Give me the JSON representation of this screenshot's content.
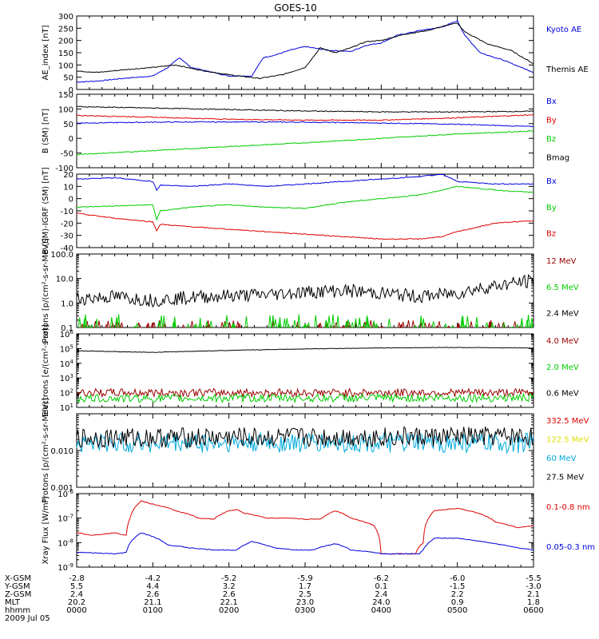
{
  "title": "GOES-10",
  "colors": {
    "black": "#000000",
    "blue": "#0000dd",
    "red": "#dd0000",
    "green": "#00cc00",
    "darkred": "#990000",
    "yellow": "#dddd00",
    "cyan": "#00aadd"
  },
  "x_ticks": {
    "rows": [
      {
        "label": "X-GSM",
        "values": [
          "-2.8",
          "-4.2",
          "-5.2",
          "-5.9",
          "-6.2",
          "-6.0",
          "-5.5"
        ]
      },
      {
        "label": "Y-GSM",
        "values": [
          "5.5",
          "4.4",
          "3.2",
          "1.7",
          "0.1",
          "-1.5",
          "-3.0"
        ]
      },
      {
        "label": "Z-GSM",
        "values": [
          "2.4",
          "2.6",
          "2.6",
          "2.5",
          "2.4",
          "2.2",
          "2.1"
        ]
      },
      {
        "label": "MLT",
        "values": [
          "20.2",
          "21.1",
          "22.1",
          "23.0",
          "24.0",
          "0.9",
          "1.8"
        ]
      },
      {
        "label": "hhmm",
        "values": [
          "0000",
          "0100",
          "0200",
          "0300",
          "0400",
          "0500",
          "0600"
        ]
      }
    ],
    "date": "2009 Jul 05"
  },
  "chart_data": [
    {
      "type": "line",
      "ylabel": "AE_index [nT]",
      "ylim": [
        0,
        300
      ],
      "yticks": [
        "0",
        "50",
        "100",
        "150",
        "200",
        "250",
        "300"
      ],
      "series": [
        {
          "name": "Kyoto AE",
          "color": "blue",
          "x": [
            0,
            0.3,
            0.6,
            1.0,
            1.2,
            1.35,
            1.5,
            2.0,
            2.3,
            2.45,
            2.6,
            2.8,
            3.0,
            3.3,
            3.6,
            3.8,
            4.0,
            4.2,
            4.5,
            4.8,
            5.0,
            5.1,
            5.3,
            5.6,
            6.0
          ],
          "y": [
            30,
            35,
            45,
            55,
            90,
            130,
            90,
            55,
            55,
            130,
            140,
            160,
            175,
            160,
            155,
            180,
            190,
            220,
            240,
            255,
            280,
            220,
            150,
            120,
            70
          ]
        },
        {
          "name": "Themis AE",
          "color": "black",
          "x": [
            0,
            0.3,
            0.6,
            1.0,
            1.3,
            1.6,
            2.0,
            2.4,
            2.7,
            3.0,
            3.2,
            3.4,
            3.6,
            3.8,
            4.0,
            4.3,
            4.6,
            4.9,
            5.0,
            5.1,
            5.4,
            5.7,
            6.0
          ],
          "y": [
            75,
            70,
            80,
            90,
            100,
            80,
            60,
            45,
            60,
            90,
            170,
            150,
            170,
            195,
            200,
            225,
            240,
            265,
            270,
            235,
            185,
            160,
            105
          ]
        }
      ]
    },
    {
      "type": "line",
      "ylabel": "B (SM) [nT]",
      "ylim": [
        -100,
        150
      ],
      "yticks": [
        "-100",
        "-50",
        "0",
        "50",
        "100",
        "150"
      ],
      "series": [
        {
          "name": "Bx",
          "color": "blue",
          "x": [
            0,
            1,
            2,
            3,
            4,
            5,
            6
          ],
          "y": [
            52,
            55,
            56,
            55,
            52,
            48,
            40
          ]
        },
        {
          "name": "By",
          "color": "red",
          "x": [
            0,
            1,
            2,
            3,
            4,
            5,
            6
          ],
          "y": [
            78,
            72,
            65,
            62,
            62,
            70,
            80
          ]
        },
        {
          "name": "Bz",
          "color": "green",
          "x": [
            0,
            1,
            2,
            3,
            4,
            5,
            6
          ],
          "y": [
            -55,
            -42,
            -28,
            -15,
            0,
            15,
            25
          ]
        },
        {
          "name": "Bmag",
          "color": "black",
          "x": [
            0,
            1,
            2,
            3,
            4,
            5,
            6
          ],
          "y": [
            108,
            103,
            98,
            93,
            90,
            90,
            92
          ]
        }
      ]
    },
    {
      "type": "line",
      "ylabel": "B (SM)-IGRF (SM) [nT]",
      "ylim": [
        -40,
        20
      ],
      "yticks": [
        "-40",
        "-30",
        "-20",
        "-10",
        "0",
        "10",
        "20"
      ],
      "series": [
        {
          "name": "Bx",
          "color": "blue",
          "x": [
            0,
            0.5,
            1.0,
            1.05,
            1.1,
            1.5,
            2.0,
            2.5,
            3.0,
            3.5,
            4.0,
            4.5,
            4.8,
            5.0,
            5.5,
            6.0
          ],
          "y": [
            16,
            17,
            14,
            7,
            11,
            10,
            12,
            10,
            12,
            14,
            16,
            18,
            20,
            14,
            12,
            12
          ]
        },
        {
          "name": "By",
          "color": "green",
          "x": [
            0,
            0.5,
            1.0,
            1.05,
            1.1,
            1.5,
            2.0,
            2.5,
            3.0,
            3.5,
            4.0,
            4.5,
            4.8,
            5.0,
            5.5,
            6.0
          ],
          "y": [
            -7,
            -6,
            -5,
            -17,
            -10,
            -7,
            -5,
            -7,
            -8,
            -3,
            0,
            3,
            7,
            10,
            7,
            5
          ]
        },
        {
          "name": "Bz",
          "color": "red",
          "x": [
            0,
            0.5,
            1.0,
            1.05,
            1.1,
            1.5,
            2.0,
            2.5,
            3.0,
            3.5,
            4.0,
            4.5,
            4.8,
            5.0,
            5.5,
            6.0
          ],
          "y": [
            -12,
            -16,
            -19,
            -26,
            -21,
            -23,
            -25,
            -27,
            -29,
            -31,
            -33,
            -33,
            -31,
            -27,
            -20,
            -18
          ]
        }
      ]
    },
    {
      "type": "line",
      "ylabel": "Protons [p/(cm²-s-sr-MeV)]",
      "yscale": "log",
      "ylim": [
        0.1,
        100
      ],
      "yticks": [
        "0.1",
        "1.0",
        "10.0",
        "100.0"
      ],
      "series": [
        {
          "name": "12 MeV",
          "color": "darkred",
          "sparse": true,
          "ylevel": [
            0.1,
            0.2
          ]
        },
        {
          "name": "6.5 MeV",
          "color": "green",
          "sparse": true,
          "ylevel": [
            0.1,
            0.35
          ]
        },
        {
          "name": "2.4 MeV",
          "color": "black",
          "x": [
            0,
            0.5,
            1.0,
            1.5,
            2.0,
            2.5,
            3.0,
            3.5,
            4.0,
            4.5,
            5.0,
            5.5,
            6.0
          ],
          "y": [
            1.5,
            1.8,
            1.3,
            1.7,
            2.0,
            2.2,
            2.8,
            3.2,
            2.5,
            1.8,
            2.5,
            5.0,
            8.0
          ],
          "noise": true
        }
      ]
    },
    {
      "type": "line",
      "ylabel": "Electrons [e/(cm²-s-sr)]",
      "yscale": "log",
      "ylim": [
        10,
        1000000
      ],
      "yticks": [
        "10^1",
        "10^2",
        "10^3",
        "10^4",
        "10^5",
        "10^6"
      ],
      "series": [
        {
          "name": "4.0 MeV",
          "color": "darkred",
          "x": [
            0,
            6
          ],
          "y": [
            100,
            100
          ],
          "noise": true
        },
        {
          "name": "2.0 MeV",
          "color": "green",
          "x": [
            0,
            6
          ],
          "y": [
            40,
            45
          ],
          "noise": true
        },
        {
          "name": "0.6 MeV",
          "color": "black",
          "x": [
            0,
            1,
            2,
            3,
            4,
            5,
            6
          ],
          "y": [
            70000,
            55000,
            75000,
            95000,
            110000,
            120000,
            110000
          ]
        }
      ]
    },
    {
      "type": "line",
      "ylabel": "Protons [p/(cm²-s-sr-MeV)]",
      "yscale": "log",
      "ylim": [
        0.001,
        0.1
      ],
      "yticks": [
        "0.001",
        "0.010"
      ],
      "series": [
        {
          "name": "332.5 MeV",
          "color": "red"
        },
        {
          "name": "122.5 MeV",
          "color": "yellow"
        },
        {
          "name": "60 MeV",
          "color": "cyan",
          "x": [
            0,
            6
          ],
          "y": [
            0.016,
            0.016
          ],
          "noise": true
        },
        {
          "name": "27.5 MeV",
          "color": "black",
          "x": [
            0,
            6
          ],
          "y": [
            0.022,
            0.024
          ],
          "noise": true
        }
      ]
    },
    {
      "type": "line",
      "ylabel": "Xray Flux [W/m²]",
      "yscale": "log",
      "ylim": [
        1e-09,
        1e-06
      ],
      "yticks": [
        "10^-9",
        "10^-8",
        "10^-7",
        "10^-6"
      ],
      "series": [
        {
          "name": "0.1-0.8 nm",
          "color": "red",
          "x": [
            0,
            0.2,
            0.5,
            0.65,
            0.7,
            0.85,
            0.95,
            1.3,
            1.6,
            1.8,
            2.0,
            2.1,
            2.2,
            2.5,
            2.8,
            3.0,
            3.2,
            3.4,
            3.6,
            3.9,
            4.0,
            4.2,
            4.3,
            4.45,
            4.55,
            4.7,
            5.0,
            5.3,
            5.5,
            5.8,
            6.0
          ],
          "y": [
            2.5e-08,
            2e-08,
            2.5e-08,
            2e-08,
            1e-07,
            5e-07,
            4e-07,
            2e-07,
            1e-07,
            9e-08,
            2e-07,
            2.2e-07,
            1.6e-07,
            1e-07,
            1e-07,
            9e-08,
            9e-08,
            2e-07,
            1e-07,
            5e-08,
            3.5e-09,
            3.5e-09,
            3.5e-09,
            3.5e-09,
            1e-08,
            2e-07,
            2.5e-07,
            1.5e-07,
            7e-08,
            4e-08,
            5e-08
          ]
        },
        {
          "name": "0.05-0.3 nm",
          "color": "blue",
          "x": [
            0,
            0.5,
            0.65,
            0.85,
            0.95,
            1.2,
            1.5,
            1.8,
            2.1,
            2.3,
            2.6,
            2.9,
            3.1,
            3.4,
            3.6,
            3.9,
            4.0,
            4.5,
            4.55,
            4.7,
            5.0,
            5.4,
            5.8,
            6.0
          ],
          "y": [
            4e-09,
            3.5e-09,
            4e-09,
            2.5e-08,
            2e-08,
            8e-09,
            6e-09,
            5e-09,
            5e-09,
            1.1e-08,
            6e-09,
            5e-09,
            5e-09,
            9e-09,
            5e-09,
            4e-09,
            3.5e-09,
            3.5e-09,
            5e-09,
            1.5e-08,
            1.5e-08,
            1e-08,
            6e-09,
            5e-09
          ]
        }
      ]
    }
  ]
}
